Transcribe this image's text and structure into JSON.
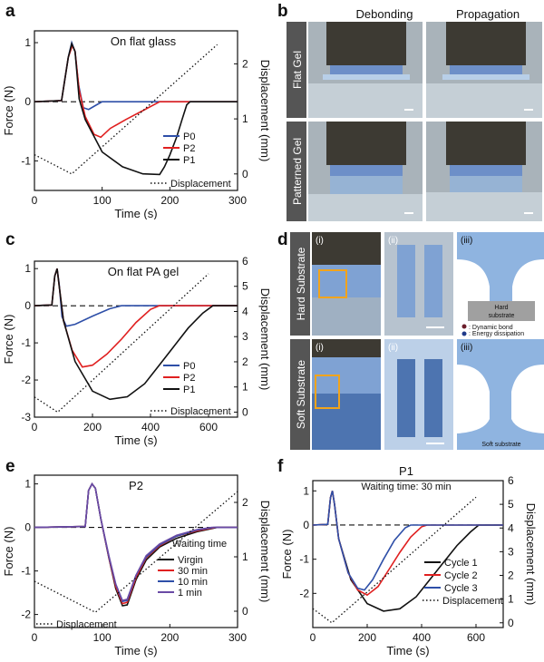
{
  "panels": {
    "a": {
      "letter": "a",
      "title": "On flat glass",
      "xlabel": "Time (s)",
      "ylabel": "Force (N)",
      "y2label": "Displacement (mm)",
      "xticks": [
        "0",
        "100",
        "200",
        "300"
      ],
      "yticks": [
        "1",
        "0",
        "-1"
      ],
      "y2ticks": [
        "2",
        "1",
        "0"
      ],
      "legend": [
        "P0",
        "P2",
        "P1"
      ],
      "legend_disp": "Displacement"
    },
    "b": {
      "letter": "b",
      "col1": "Debonding",
      "col2": "Propagation",
      "row1": "Flat Gel",
      "row2": "Patterned Gel"
    },
    "c": {
      "letter": "c",
      "title": "On flat PA gel",
      "xlabel": "Time (s)",
      "ylabel": "Force (N)",
      "y2label": "Displacement (mm)",
      "xticks": [
        "0",
        "200",
        "400",
        "600"
      ],
      "yticks": [
        "1",
        "0",
        "-1",
        "-2",
        "-3"
      ],
      "y2ticks": [
        "6",
        "5",
        "4",
        "3",
        "2",
        "1",
        "0"
      ],
      "legend": [
        "P0",
        "P2",
        "P1"
      ],
      "legend_disp": "Displacement"
    },
    "d": {
      "letter": "d",
      "row1": "Hard Substrate",
      "row2": "Soft Substrate",
      "sub_i": "(i)",
      "sub_ii": "(ii)",
      "sub_iii": "(iii)",
      "hard_label_1": "Hard",
      "hard_label_2": "substrate",
      "soft_label": "Soft substrate",
      "legend_bond": ": Dynamic bond",
      "legend_energy": ": Energy dissipation"
    },
    "e": {
      "letter": "e",
      "title": "P2",
      "xlabel": "Time (s)",
      "ylabel": "Force (N)",
      "y2label": "Displacement (mm)",
      "xticks": [
        "0",
        "100",
        "200",
        "300"
      ],
      "yticks": [
        "1",
        "0",
        "-1",
        "-2"
      ],
      "y2ticks": [
        "2",
        "1",
        "0"
      ],
      "legend_title": "Waiting time",
      "legend": [
        "Virgin",
        "30 min",
        "10 min",
        "1 min"
      ],
      "legend_disp": "Displacement"
    },
    "f": {
      "letter": "f",
      "title": "P1",
      "subtitle": "Waiting time: 30 min",
      "xlabel": "Time (s)",
      "ylabel": "Force (N)",
      "y2label": "Displacement (mm)",
      "xticks": [
        "0",
        "200",
        "400",
        "600"
      ],
      "yticks": [
        "1",
        "0",
        "-1",
        "-2"
      ],
      "y2ticks": [
        "6",
        "5",
        "4",
        "3",
        "2",
        "1",
        "0"
      ],
      "legend": [
        "Cycle 1",
        "Cycle 2",
        "Cycle 3"
      ],
      "legend_disp": "Displacement"
    }
  },
  "colors": {
    "blue": "#2e4fa8",
    "red": "#e02020",
    "black": "#111111",
    "gel": "#8fb4e0",
    "purple": "#6a4aa5"
  },
  "chart_data": [
    {
      "id": "a",
      "type": "line",
      "xlim": [
        0,
        300
      ],
      "ylim": [
        -1.5,
        1.2
      ],
      "y2lim": [
        -0.3,
        2.6
      ],
      "series": [
        {
          "name": "P0",
          "color": "blue",
          "points": [
            [
              0,
              0
            ],
            [
              40,
              0.02
            ],
            [
              50,
              0.75
            ],
            [
              55,
              1.0
            ],
            [
              60,
              0.85
            ],
            [
              65,
              0.3
            ],
            [
              72,
              -0.1
            ],
            [
              80,
              -0.13
            ],
            [
              92,
              -0.05
            ],
            [
              100,
              0
            ],
            [
              300,
              0
            ]
          ]
        },
        {
          "name": "P2",
          "color": "red",
          "points": [
            [
              0,
              0
            ],
            [
              40,
              0.02
            ],
            [
              50,
              0.75
            ],
            [
              56,
              0.95
            ],
            [
              60,
              0.85
            ],
            [
              66,
              0.2
            ],
            [
              75,
              -0.25
            ],
            [
              88,
              -0.55
            ],
            [
              98,
              -0.6
            ],
            [
              112,
              -0.45
            ],
            [
              135,
              -0.3
            ],
            [
              160,
              -0.15
            ],
            [
              185,
              0
            ],
            [
              300,
              0
            ]
          ]
        },
        {
          "name": "P1",
          "color": "black",
          "points": [
            [
              0,
              0
            ],
            [
              40,
              0.02
            ],
            [
              50,
              0.75
            ],
            [
              55,
              0.98
            ],
            [
              60,
              0.85
            ],
            [
              66,
              0.05
            ],
            [
              75,
              -0.3
            ],
            [
              100,
              -0.85
            ],
            [
              130,
              -1.1
            ],
            [
              160,
              -1.22
            ],
            [
              185,
              -1.23
            ],
            [
              192,
              -1.1
            ],
            [
              200,
              -0.9
            ],
            [
              210,
              -0.6
            ],
            [
              218,
              -0.3
            ],
            [
              225,
              -0.05
            ],
            [
              230,
              0
            ],
            [
              300,
              0
            ]
          ]
        },
        {
          "name": "Displacement",
          "axis": "y2",
          "dashed": true,
          "points": [
            [
              0,
              0.35
            ],
            [
              55,
              0
            ],
            [
              270,
              2.35
            ]
          ]
        }
      ]
    },
    {
      "id": "c",
      "type": "line",
      "xlim": [
        0,
        700
      ],
      "ylim": [
        -3,
        1.2
      ],
      "y2lim": [
        -0.2,
        6
      ],
      "series": [
        {
          "name": "P0",
          "color": "blue",
          "points": [
            [
              0,
              0
            ],
            [
              60,
              0.02
            ],
            [
              70,
              0.8
            ],
            [
              78,
              1.0
            ],
            [
              85,
              0.6
            ],
            [
              95,
              -0.3
            ],
            [
              110,
              -0.55
            ],
            [
              140,
              -0.5
            ],
            [
              200,
              -0.28
            ],
            [
              260,
              -0.08
            ],
            [
              300,
              0
            ],
            [
              700,
              0
            ]
          ]
        },
        {
          "name": "P2",
          "color": "red",
          "points": [
            [
              0,
              0
            ],
            [
              60,
              0.02
            ],
            [
              70,
              0.8
            ],
            [
              78,
              1.0
            ],
            [
              85,
              0.55
            ],
            [
              100,
              -0.4
            ],
            [
              130,
              -1.2
            ],
            [
              165,
              -1.65
            ],
            [
              200,
              -1.6
            ],
            [
              250,
              -1.3
            ],
            [
              300,
              -0.9
            ],
            [
              350,
              -0.45
            ],
            [
              400,
              -0.1
            ],
            [
              430,
              0
            ],
            [
              700,
              0
            ]
          ]
        },
        {
          "name": "P1",
          "color": "black",
          "points": [
            [
              0,
              0
            ],
            [
              60,
              0.02
            ],
            [
              70,
              0.8
            ],
            [
              78,
              1.0
            ],
            [
              85,
              0.55
            ],
            [
              100,
              -0.4
            ],
            [
              140,
              -1.5
            ],
            [
              200,
              -2.3
            ],
            [
              260,
              -2.52
            ],
            [
              320,
              -2.45
            ],
            [
              380,
              -2.1
            ],
            [
              430,
              -1.6
            ],
            [
              480,
              -1.1
            ],
            [
              530,
              -0.6
            ],
            [
              580,
              -0.2
            ],
            [
              615,
              0
            ],
            [
              700,
              0
            ]
          ]
        },
        {
          "name": "Displacement",
          "axis": "y2",
          "dashed": true,
          "points": [
            [
              0,
              0.6
            ],
            [
              80,
              0
            ],
            [
              600,
              5.5
            ]
          ]
        }
      ]
    },
    {
      "id": "e",
      "type": "line",
      "xlim": [
        0,
        300
      ],
      "ylim": [
        -2.3,
        1.2
      ],
      "y2lim": [
        -0.3,
        2.5
      ],
      "series": [
        {
          "name": "Virgin",
          "color": "black",
          "points": [
            [
              0,
              0
            ],
            [
              75,
              0.02
            ],
            [
              80,
              0.85
            ],
            [
              85,
              1.0
            ],
            [
              90,
              0.9
            ],
            [
              98,
              0.2
            ],
            [
              110,
              -0.7
            ],
            [
              120,
              -1.4
            ],
            [
              130,
              -1.8
            ],
            [
              137,
              -1.78
            ],
            [
              150,
              -1.2
            ],
            [
              165,
              -0.75
            ],
            [
              185,
              -0.45
            ],
            [
              210,
              -0.25
            ],
            [
              240,
              -0.1
            ],
            [
              270,
              0
            ],
            [
              300,
              0
            ]
          ]
        },
        {
          "name": "30 min",
          "color": "red",
          "points": [
            [
              0,
              0
            ],
            [
              75,
              0.02
            ],
            [
              80,
              0.85
            ],
            [
              85,
              1.0
            ],
            [
              90,
              0.9
            ],
            [
              98,
              0.2
            ],
            [
              110,
              -0.7
            ],
            [
              120,
              -1.35
            ],
            [
              130,
              -1.75
            ],
            [
              137,
              -1.72
            ],
            [
              150,
              -1.15
            ],
            [
              165,
              -0.7
            ],
            [
              185,
              -0.42
            ],
            [
              210,
              -0.2
            ],
            [
              240,
              -0.08
            ],
            [
              268,
              0
            ],
            [
              300,
              0
            ]
          ]
        },
        {
          "name": "10 min",
          "color": "blue",
          "points": [
            [
              0,
              0
            ],
            [
              75,
              0.02
            ],
            [
              80,
              0.85
            ],
            [
              85,
              1.0
            ],
            [
              90,
              0.9
            ],
            [
              98,
              0.2
            ],
            [
              110,
              -0.68
            ],
            [
              120,
              -1.3
            ],
            [
              130,
              -1.7
            ],
            [
              137,
              -1.68
            ],
            [
              150,
              -1.1
            ],
            [
              165,
              -0.68
            ],
            [
              185,
              -0.4
            ],
            [
              210,
              -0.2
            ],
            [
              240,
              -0.06
            ],
            [
              265,
              0
            ],
            [
              300,
              0
            ]
          ]
        },
        {
          "name": "1 min",
          "color": "purple",
          "points": [
            [
              0,
              0
            ],
            [
              75,
              0.02
            ],
            [
              80,
              0.85
            ],
            [
              85,
              1.0
            ],
            [
              90,
              0.9
            ],
            [
              98,
              0.2
            ],
            [
              110,
              -0.65
            ],
            [
              120,
              -1.3
            ],
            [
              130,
              -1.68
            ],
            [
              137,
              -1.65
            ],
            [
              150,
              -1.1
            ],
            [
              165,
              -0.65
            ],
            [
              185,
              -0.38
            ],
            [
              210,
              -0.18
            ],
            [
              240,
              -0.05
            ],
            [
              262,
              0
            ],
            [
              300,
              0
            ]
          ]
        },
        {
          "name": "Displacement",
          "axis": "y2",
          "dashed": true,
          "points": [
            [
              0,
              0.55
            ],
            [
              90,
              -0.02
            ],
            [
              300,
              2.2
            ]
          ]
        }
      ]
    },
    {
      "id": "f",
      "type": "line",
      "xlim": [
        0,
        700
      ],
      "ylim": [
        -3,
        1.3
      ],
      "y2lim": [
        -0.2,
        6
      ],
      "series": [
        {
          "name": "Cycle 1",
          "color": "black",
          "points": [
            [
              0,
              0
            ],
            [
              55,
              0.02
            ],
            [
              65,
              0.8
            ],
            [
              72,
              1.0
            ],
            [
              80,
              0.6
            ],
            [
              95,
              -0.4
            ],
            [
              140,
              -1.6
            ],
            [
              200,
              -2.3
            ],
            [
              260,
              -2.52
            ],
            [
              320,
              -2.45
            ],
            [
              380,
              -2.1
            ],
            [
              430,
              -1.6
            ],
            [
              480,
              -1.1
            ],
            [
              530,
              -0.6
            ],
            [
              580,
              -0.2
            ],
            [
              610,
              0
            ],
            [
              700,
              0
            ]
          ]
        },
        {
          "name": "Cycle 2",
          "color": "red",
          "points": [
            [
              0,
              0
            ],
            [
              55,
              0.02
            ],
            [
              65,
              0.8
            ],
            [
              72,
              1.0
            ],
            [
              80,
              0.6
            ],
            [
              95,
              -0.4
            ],
            [
              130,
              -1.4
            ],
            [
              165,
              -1.9
            ],
            [
              200,
              -2.05
            ],
            [
              240,
              -1.8
            ],
            [
              280,
              -1.3
            ],
            [
              320,
              -0.8
            ],
            [
              360,
              -0.35
            ],
            [
              400,
              -0.05
            ],
            [
              420,
              0
            ],
            [
              700,
              0
            ]
          ]
        },
        {
          "name": "Cycle 3",
          "color": "blue",
          "points": [
            [
              0,
              0
            ],
            [
              55,
              0.02
            ],
            [
              65,
              0.8
            ],
            [
              72,
              1.0
            ],
            [
              80,
              0.6
            ],
            [
              95,
              -0.4
            ],
            [
              130,
              -1.4
            ],
            [
              165,
              -1.85
            ],
            [
              190,
              -1.9
            ],
            [
              220,
              -1.6
            ],
            [
              260,
              -1.0
            ],
            [
              300,
              -0.45
            ],
            [
              340,
              -0.08
            ],
            [
              360,
              0
            ],
            [
              700,
              0
            ]
          ]
        },
        {
          "name": "Displacement",
          "axis": "y2",
          "dashed": true,
          "points": [
            [
              0,
              0.6
            ],
            [
              70,
              0
            ],
            [
              600,
              5.3
            ]
          ]
        }
      ]
    }
  ]
}
